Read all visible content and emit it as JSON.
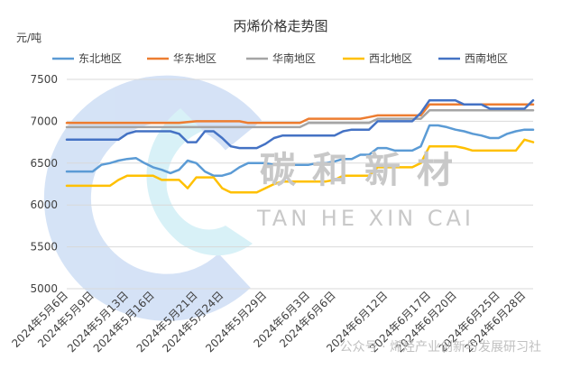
{
  "chart_data": {
    "type": "line",
    "title": "丙烯价格走势图",
    "ylabel": "元/吨",
    "xlabel": "",
    "ylim": [
      5000,
      7500
    ],
    "yticks": [
      5000,
      5500,
      6000,
      6500,
      7000,
      7500
    ],
    "grid": true,
    "legend_position": "top",
    "x": [
      "2024年5月6日",
      "2024年5月7日",
      "2024年5月8日",
      "2024年5月9日",
      "2024年5月10日",
      "2024年5月11日",
      "2024年5月12日",
      "2024年5月13日",
      "2024年5月14日",
      "2024年5月15日",
      "2024年5月16日",
      "2024年5月17日",
      "2024年5月18日",
      "2024年5月19日",
      "2024年5月20日",
      "2024年5月21日",
      "2024年5月22日",
      "2024年5月23日",
      "2024年5月24日",
      "2024年5月25日",
      "2024年5月26日",
      "2024年5月27日",
      "2024年5月28日",
      "2024年5月29日",
      "2024年5月30日",
      "2024年5月31日",
      "2024年6月1日",
      "2024年6月2日",
      "2024年6月3日",
      "2024年6月4日",
      "2024年6月5日",
      "2024年6月6日",
      "2024年6月7日",
      "2024年6月8日",
      "2024年6月9日",
      "2024年6月10日",
      "2024年6月11日",
      "2024年6月12日",
      "2024年6月13日",
      "2024年6月14日",
      "2024年6月15日",
      "2024年6月16日",
      "2024年6月17日",
      "2024年6月18日",
      "2024年6月19日",
      "2024年6月20日",
      "2024年6月21日",
      "2024年6月22日",
      "2024年6月23日",
      "2024年6月24日",
      "2024年6月25日",
      "2024年6月26日",
      "2024年6月27日",
      "2024年6月28日",
      "2024年6月29日"
    ],
    "x_tick_labels": [
      "2024年5月6日",
      "2024年5月9日",
      "2024年5月13日",
      "2024年5月16日",
      "2024年5月21日",
      "2024年5月24日",
      "2024年5月29日",
      "2024年6月3日",
      "2024年6月6日",
      "2024年6月12日",
      "2024年6月17日",
      "2024年6月20日",
      "2024年6月25日",
      "2024年6月28日"
    ],
    "series": [
      {
        "name": "东北地区",
        "color": "#5b9bd5",
        "values": [
          6400,
          6400,
          6400,
          6400,
          6480,
          6500,
          6530,
          6550,
          6560,
          6500,
          6450,
          6420,
          6380,
          6420,
          6530,
          6500,
          6400,
          6350,
          6350,
          6380,
          6450,
          6500,
          6500,
          6500,
          6480,
          6480,
          6480,
          6480,
          6480,
          6500,
          6500,
          6520,
          6550,
          6550,
          6600,
          6600,
          6680,
          6680,
          6650,
          6650,
          6650,
          6700,
          6950,
          6950,
          6930,
          6900,
          6880,
          6850,
          6830,
          6800,
          6800,
          6850,
          6880,
          6900,
          6900
        ]
      },
      {
        "name": "华东地区",
        "color": "#ed7d31",
        "values": [
          6980,
          6980,
          6980,
          6980,
          6980,
          6980,
          6980,
          6980,
          6980,
          6980,
          6980,
          6980,
          6980,
          6980,
          6990,
          7000,
          7000,
          7000,
          7000,
          7000,
          7000,
          6980,
          6980,
          6980,
          6980,
          6980,
          6980,
          6980,
          7030,
          7030,
          7030,
          7030,
          7030,
          7030,
          7030,
          7050,
          7070,
          7070,
          7070,
          7070,
          7070,
          7070,
          7200,
          7200,
          7200,
          7200,
          7200,
          7200,
          7200,
          7200,
          7200,
          7200,
          7200,
          7200,
          7200
        ]
      },
      {
        "name": "华南地区",
        "color": "#a5a5a5",
        "values": [
          6930,
          6930,
          6930,
          6930,
          6930,
          6930,
          6930,
          6930,
          6930,
          6930,
          6930,
          6930,
          6930,
          6930,
          6930,
          6930,
          6930,
          6930,
          6930,
          6930,
          6930,
          6930,
          6930,
          6930,
          6930,
          6930,
          6930,
          6930,
          6980,
          6980,
          6980,
          6980,
          6980,
          6980,
          6980,
          6980,
          7030,
          7030,
          7030,
          7030,
          7030,
          7030,
          7130,
          7130,
          7130,
          7130,
          7130,
          7130,
          7130,
          7130,
          7130,
          7130,
          7130,
          7130,
          7130
        ]
      },
      {
        "name": "西北地区",
        "color": "#ffc000",
        "values": [
          6230,
          6230,
          6230,
          6230,
          6230,
          6230,
          6300,
          6350,
          6350,
          6350,
          6350,
          6300,
          6300,
          6300,
          6200,
          6330,
          6330,
          6330,
          6200,
          6150,
          6150,
          6150,
          6150,
          6200,
          6250,
          6280,
          6280,
          6280,
          6280,
          6280,
          6280,
          6300,
          6350,
          6350,
          6350,
          6350,
          6450,
          6450,
          6450,
          6450,
          6450,
          6500,
          6700,
          6700,
          6700,
          6700,
          6680,
          6650,
          6650,
          6650,
          6650,
          6650,
          6650,
          6780,
          6750
        ]
      },
      {
        "name": "西南地区",
        "color": "#4472c4",
        "values": [
          6780,
          6780,
          6780,
          6780,
          6780,
          6780,
          6780,
          6850,
          6880,
          6880,
          6880,
          6880,
          6880,
          6850,
          6750,
          6750,
          6880,
          6880,
          6800,
          6700,
          6680,
          6680,
          6680,
          6730,
          6800,
          6830,
          6830,
          6830,
          6830,
          6830,
          6830,
          6830,
          6880,
          6900,
          6900,
          6900,
          7000,
          7000,
          7000,
          7000,
          7000,
          7100,
          7250,
          7250,
          7250,
          7250,
          7200,
          7200,
          7200,
          7150,
          7150,
          7150,
          7150,
          7150,
          7250
        ]
      }
    ]
  },
  "watermark": {
    "cn": "碳和新材",
    "en": "TAN HE XIN CAI",
    "credit": "公众号 · 烯烃产业创新与发展研习社",
    "colors": {
      "ring": "#bcd4f0",
      "ring_light": "#c9eef6"
    }
  }
}
